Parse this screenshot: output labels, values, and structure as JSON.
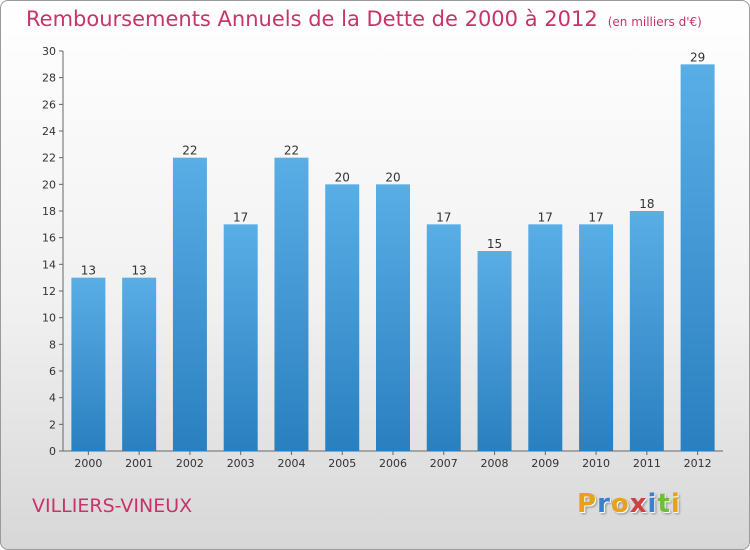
{
  "chart_data": {
    "type": "bar",
    "title": "Remboursements Annuels de la Dette de 2000 à 2012",
    "subtitle": "(en milliers d'€)",
    "categories": [
      "2000",
      "2001",
      "2002",
      "2003",
      "2004",
      "2005",
      "2006",
      "2007",
      "2008",
      "2009",
      "2010",
      "2011",
      "2012"
    ],
    "values": [
      13,
      13,
      22,
      17,
      22,
      20,
      20,
      17,
      15,
      17,
      17,
      18,
      29
    ],
    "ylim": [
      0,
      30
    ],
    "yticks": [
      0,
      2,
      4,
      6,
      8,
      10,
      12,
      14,
      16,
      18,
      20,
      22,
      24,
      26,
      28,
      30
    ],
    "grid": false,
    "bar_color_top": "#5aaee6",
    "bar_color_bottom": "#2a7fbf"
  },
  "footer": {
    "city": "VILLIERS-VINEUX",
    "logo_letters": [
      {
        "ch": "P",
        "color": "#e8a020"
      },
      {
        "ch": "r",
        "color": "#3a7fd0"
      },
      {
        "ch": "o",
        "color": "#e8a020"
      },
      {
        "ch": "x",
        "color": "#d04040"
      },
      {
        "ch": "i",
        "color": "#3a7fd0"
      },
      {
        "ch": "t",
        "color": "#6cbf3a"
      },
      {
        "ch": "i",
        "color": "#e8a020"
      }
    ]
  }
}
